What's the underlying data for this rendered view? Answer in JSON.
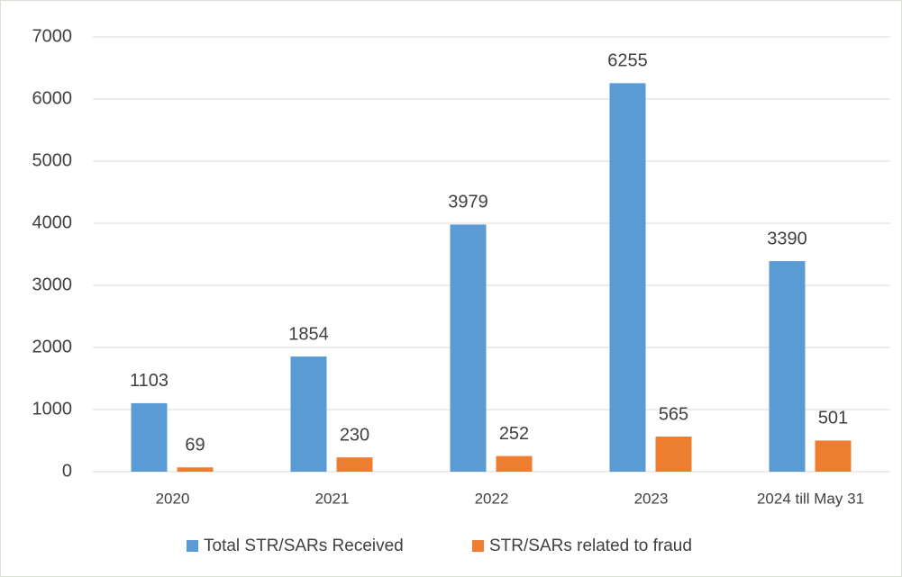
{
  "chart_data": {
    "type": "bar",
    "categories": [
      "2020",
      "2021",
      "2022",
      "2023",
      "2024 till May 31"
    ],
    "series": [
      {
        "name": "Total STR/SARs Received",
        "color": "#5b9bd5",
        "values": [
          1103,
          1854,
          3979,
          6255,
          3390
        ]
      },
      {
        "name": "STR/SARs related to fraud",
        "color": "#ed7d31",
        "values": [
          69,
          230,
          252,
          565,
          501
        ]
      }
    ],
    "ylim": [
      0,
      7000
    ],
    "yticks": [
      0,
      1000,
      2000,
      3000,
      4000,
      5000,
      6000,
      7000
    ],
    "grid": true,
    "legend": "bottom"
  }
}
